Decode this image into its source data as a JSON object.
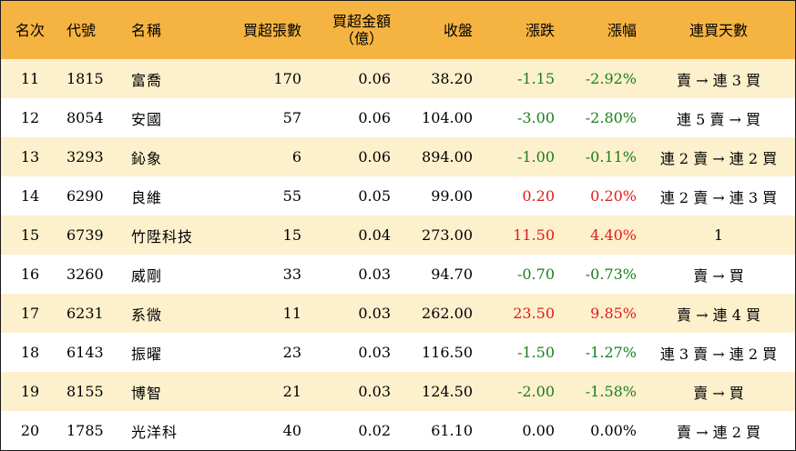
{
  "headers": {
    "rank": "名次",
    "code": "代號",
    "name": "名稱",
    "net_buy_lots": "買超張數",
    "net_buy_amount_line1": "買超金額",
    "net_buy_amount_line2": "（億）",
    "close": "收盤",
    "change": "漲跌",
    "change_pct": "漲幅",
    "consecutive_days": "連買天數"
  },
  "colors": {
    "header_bg": "#f5b442",
    "stripe_bg": "#fdf0cc",
    "up": "#e31a1a",
    "down": "#1a7f1a"
  },
  "rows": [
    {
      "rank": "11",
      "code": "1815",
      "name": "富喬",
      "lots": "170",
      "amount": "0.06",
      "close": "38.20",
      "change": "-1.15",
      "pct": "-2.92%",
      "trend": "down",
      "days": "賣 → 連 3 買"
    },
    {
      "rank": "12",
      "code": "8054",
      "name": "安國",
      "lots": "57",
      "amount": "0.06",
      "close": "104.00",
      "change": "-3.00",
      "pct": "-2.80%",
      "trend": "down",
      "days": "連 5 賣 → 買"
    },
    {
      "rank": "13",
      "code": "3293",
      "name": "鈊象",
      "lots": "6",
      "amount": "0.06",
      "close": "894.00",
      "change": "-1.00",
      "pct": "-0.11%",
      "trend": "down",
      "days": "連 2 賣 → 連 2 買"
    },
    {
      "rank": "14",
      "code": "6290",
      "name": "良維",
      "lots": "55",
      "amount": "0.05",
      "close": "99.00",
      "change": "0.20",
      "pct": "0.20%",
      "trend": "up",
      "days": "連 2 賣 → 連 3 買"
    },
    {
      "rank": "15",
      "code": "6739",
      "name": "竹陞科技",
      "lots": "15",
      "amount": "0.04",
      "close": "273.00",
      "change": "11.50",
      "pct": "4.40%",
      "trend": "up",
      "days": "1"
    },
    {
      "rank": "16",
      "code": "3260",
      "name": "威剛",
      "lots": "33",
      "amount": "0.03",
      "close": "94.70",
      "change": "-0.70",
      "pct": "-0.73%",
      "trend": "down",
      "days": "賣 → 買"
    },
    {
      "rank": "17",
      "code": "6231",
      "name": "系微",
      "lots": "11",
      "amount": "0.03",
      "close": "262.00",
      "change": "23.50",
      "pct": "9.85%",
      "trend": "up",
      "days": "賣 → 連 4 買"
    },
    {
      "rank": "18",
      "code": "6143",
      "name": "振曜",
      "lots": "23",
      "amount": "0.03",
      "close": "116.50",
      "change": "-1.50",
      "pct": "-1.27%",
      "trend": "down",
      "days": "連 3 賣 → 連 2 買"
    },
    {
      "rank": "19",
      "code": "8155",
      "name": "博智",
      "lots": "21",
      "amount": "0.03",
      "close": "124.50",
      "change": "-2.00",
      "pct": "-1.58%",
      "trend": "down",
      "days": "賣 → 買"
    },
    {
      "rank": "20",
      "code": "1785",
      "name": "光洋科",
      "lots": "40",
      "amount": "0.02",
      "close": "61.10",
      "change": "0.00",
      "pct": "0.00%",
      "trend": "flat",
      "days": "賣 → 連 2 買"
    }
  ]
}
